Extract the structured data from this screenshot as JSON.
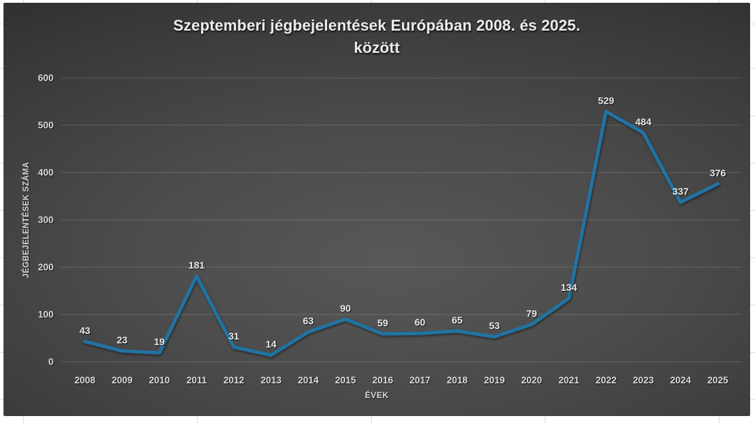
{
  "chart_data": {
    "type": "line",
    "title": "Szeptemberi jégbejelentések Európában 2008. és 2025. között",
    "title_lines": [
      "Szeptemberi jégbejelentések Európában 2008. és 2025.",
      "között"
    ],
    "categories": [
      "2008",
      "2009",
      "2010",
      "2011",
      "2012",
      "2013",
      "2014",
      "2015",
      "2016",
      "2017",
      "2018",
      "2019",
      "2020",
      "2021",
      "2022",
      "2023",
      "2024",
      "2025"
    ],
    "values": [
      43,
      23,
      19,
      181,
      31,
      14,
      63,
      90,
      59,
      60,
      65,
      53,
      79,
      134,
      529,
      484,
      337,
      376
    ],
    "xlabel": "ÉVEK",
    "ylabel": "JÉGBEJELENTÉSEK SZÁMA",
    "ylim": [
      0,
      600
    ],
    "ytick_step": 100,
    "yticks": [
      "0",
      "100",
      "200",
      "300",
      "400",
      "500",
      "600"
    ],
    "grid": true,
    "legend": false,
    "data_labels": true,
    "line_color": "#2173A2",
    "tick_color": "#D9D9D9",
    "data_label_color": "#E9E9E9",
    "chart_background": "dark-gray-gradient",
    "sheet_background": "#FFFFFF"
  }
}
